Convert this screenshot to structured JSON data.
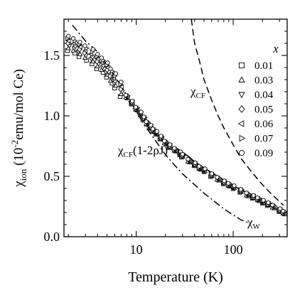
{
  "chart_data": {
    "type": "scatter",
    "xlabel": "Temperature (K)",
    "ylabel": {
      "main": "χ",
      "sub": "ion",
      "rest": " (10",
      "sup": "-2",
      "unit": "emu/mol Ce)"
    },
    "xscale": "log",
    "xlim": [
      1.8,
      360
    ],
    "ylim": [
      0,
      1.8
    ],
    "x_ticks": [
      10,
      100
    ],
    "x_tick_labels": [
      "10",
      "100"
    ],
    "y_ticks": [
      0.0,
      0.5,
      1.0,
      1.5
    ],
    "y_tick_labels": [
      "0.0",
      "0.5",
      "1.0",
      "1.5"
    ],
    "grid": false,
    "legend_title": "x",
    "legend_position": "top-right",
    "series": [
      {
        "name": "0.01",
        "marker": "square"
      },
      {
        "name": "0.03",
        "marker": "triangle-up"
      },
      {
        "name": "0.04",
        "marker": "triangle-down"
      },
      {
        "name": "0.05",
        "marker": "diamond"
      },
      {
        "name": "0.06",
        "marker": "triangle-left"
      },
      {
        "name": "0.07",
        "marker": "triangle-right"
      },
      {
        "name": "0.09",
        "marker": "circle"
      }
    ],
    "data_x": [
      2.0,
      2.3,
      2.6,
      3.0,
      3.5,
      4.0,
      4.5,
      5.0,
      5.5,
      6.0,
      7.0,
      8.0,
      9.0,
      10.0,
      11.0,
      12.0,
      13.0,
      14.0,
      15.0,
      16.0,
      18.0,
      20.0,
      22.0,
      25.0,
      28.0,
      30.0,
      35.0,
      40.0,
      45.0,
      50.0,
      60.0,
      70.0,
      80.0,
      90.0,
      100.0,
      120.0,
      140.0,
      160.0,
      180.0,
      200.0,
      230.0,
      260.0,
      300.0,
      330.0
    ],
    "data_y": [
      1.6,
      1.58,
      1.55,
      1.52,
      1.49,
      1.45,
      1.42,
      1.38,
      1.33,
      1.29,
      1.22,
      1.16,
      1.11,
      1.06,
      1.02,
      0.98,
      0.94,
      0.91,
      0.88,
      0.86,
      0.82,
      0.78,
      0.75,
      0.72,
      0.69,
      0.67,
      0.63,
      0.6,
      0.57,
      0.55,
      0.51,
      0.48,
      0.45,
      0.43,
      0.41,
      0.38,
      0.35,
      0.33,
      0.31,
      0.29,
      0.27,
      0.25,
      0.22,
      0.2
    ],
    "curves": [
      {
        "label_main": "χ",
        "label_sub": "CF",
        "label_rest": "",
        "style": "dashed",
        "x": [
          37,
          40,
          45,
          50,
          60,
          70,
          80,
          100,
          120,
          150,
          200,
          250,
          330
        ],
        "y": [
          1.8,
          1.6,
          1.45,
          1.3,
          1.13,
          1.0,
          0.9,
          0.76,
          0.65,
          0.55,
          0.43,
          0.35,
          0.26
        ]
      },
      {
        "label_main": "χ",
        "label_sub": "CF",
        "label_rest": "(1-2ρJ)",
        "style": "solid",
        "x": [
          25,
          30,
          35,
          40,
          50,
          60,
          80,
          100,
          150,
          200,
          250,
          330
        ],
        "y": [
          0.74,
          0.7,
          0.66,
          0.62,
          0.57,
          0.53,
          0.47,
          0.42,
          0.35,
          0.29,
          0.25,
          0.2
        ]
      },
      {
        "label_main": "χ",
        "label_sub": "W",
        "label_rest": "",
        "style": "dashdot",
        "x": [
          2.2,
          3,
          4,
          5,
          6,
          8,
          10,
          12,
          15,
          20,
          25,
          30,
          40,
          50,
          60,
          80,
          100,
          120,
          150
        ],
        "y": [
          1.75,
          1.62,
          1.53,
          1.42,
          1.33,
          1.17,
          1.04,
          0.93,
          0.82,
          0.68,
          0.59,
          0.52,
          0.43,
          0.36,
          0.31,
          0.23,
          0.18,
          0.14,
          0.11
        ]
      }
    ]
  }
}
